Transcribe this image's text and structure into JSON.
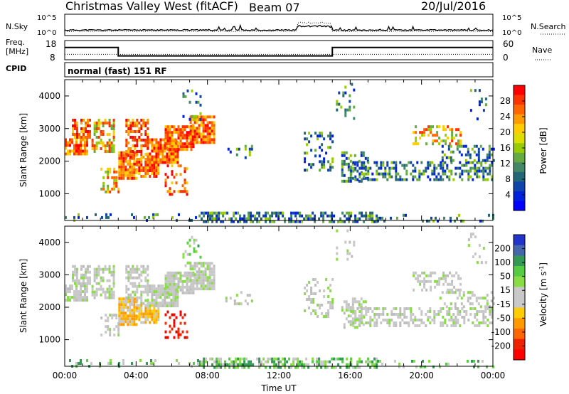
{
  "header": {
    "station": "Christmas Valley West (fitACF)",
    "beam": "Beam 07",
    "date": "20/Jul/2016"
  },
  "chart_data": [
    {
      "type": "line",
      "name": "noise-panel",
      "left_label": "N.Sky",
      "right_label": "N.Search",
      "yticks_left": [
        "10^5",
        "10^0"
      ],
      "yticks_right": [
        "10^5",
        "10^0"
      ],
      "series": [
        {
          "name": "N.Sky",
          "style": "solid"
        },
        {
          "name": "N.Search",
          "style": "dotted"
        }
      ]
    },
    {
      "type": "line",
      "name": "frequency-panel",
      "left_label": [
        "Freq.",
        "[MHz]"
      ],
      "right_label": "Nave",
      "yticks_left": [
        "18",
        "8"
      ],
      "yticks_right": [
        "60",
        "0"
      ],
      "freq_steps": [
        {
          "start_h": 0,
          "end_h": 3,
          "mhz": 14.4
        },
        {
          "start_h": 3,
          "end_h": 15,
          "mhz": 10.0
        },
        {
          "start_h": 15,
          "end_h": 24,
          "mhz": 14.4
        }
      ],
      "nave_level": 17
    },
    {
      "type": "text",
      "name": "cpid-panel",
      "label": "CPID",
      "value": "normal (fast) 151 RF"
    },
    {
      "type": "heatmap",
      "name": "power-panel",
      "ylabel": "Slant Range [km]",
      "yticks": [
        1000,
        2000,
        3000,
        4000
      ],
      "ylim": [
        180,
        4500
      ],
      "xlim_hours": [
        0,
        24
      ],
      "colorbar": {
        "label": "Power [dB]",
        "ticks": [
          "28",
          "24",
          "20",
          "16",
          "12",
          "8",
          "4"
        ],
        "colors": [
          "#ff0000",
          "#ff3300",
          "#ff6600",
          "#ff9900",
          "#ffcc00",
          "#dddd00",
          "#99cc00",
          "#66aa44",
          "#448866",
          "#226677",
          "#1144aa",
          "#0022dd",
          "#0000ff"
        ]
      }
    },
    {
      "type": "heatmap",
      "name": "velocity-panel",
      "ylabel": "Slant Range [km]",
      "yticks": [
        1000,
        2000,
        3000,
        4000
      ],
      "ylim": [
        180,
        4500
      ],
      "xlim_hours": [
        0,
        24
      ],
      "xlabel": "Time UT",
      "xticks": [
        "00:00",
        "04:00",
        "08:00",
        "12:00",
        "16:00",
        "20:00",
        "00:00"
      ],
      "colorbar": {
        "label": "Velocity [m s^-1]",
        "ticks": [
          "200",
          "100",
          "50",
          "15",
          "-15",
          "-50",
          "-100",
          "-200"
        ],
        "colors": [
          "#2233cc",
          "#4466aa",
          "#339955",
          "#55cc44",
          "#88dd44",
          "#c8c8c8",
          "#c8c8c8",
          "#ffcc00",
          "#ff9900",
          "#ff6600",
          "#ee2200",
          "#ff0000"
        ]
      }
    }
  ]
}
